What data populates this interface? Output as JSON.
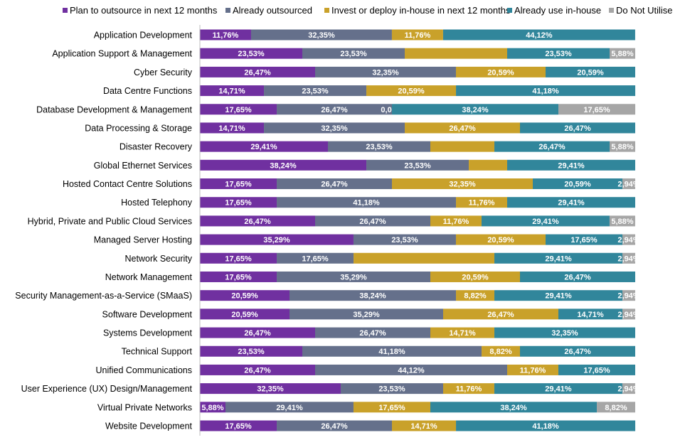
{
  "chart_data": {
    "type": "bar",
    "orientation": "horizontal",
    "stacked": "100%",
    "title": "",
    "xlabel": "",
    "ylabel": "",
    "xlim": [
      0,
      100
    ],
    "grid": false,
    "legend_position": "top",
    "value_format": "comma-decimal percent",
    "categories": [
      "Application Development",
      "Application Support & Management",
      "Cyber Security",
      "Data Centre Functions",
      "Database Development & Management",
      "Data Processing & Storage",
      "Disaster Recovery",
      "Global Ethernet Services",
      "Hosted Contact Centre Solutions",
      "Hosted Telephony",
      "Hybrid, Private and Public Cloud Services",
      "Managed Server Hosting",
      "Network Security",
      "Network Management",
      "Security Management-as-a-Service (SMaaS)",
      "Software Development",
      "Systems Development",
      "Technical Support",
      "Unified Communications",
      "User Experience (UX) Design/Management",
      "Virtual Private Networks",
      "Website Development"
    ],
    "series": [
      {
        "name": "Plan to outsource in next 12 months",
        "color": "#7030A0",
        "values": [
          11.76,
          23.53,
          26.47,
          14.71,
          17.65,
          14.71,
          29.41,
          38.24,
          17.65,
          17.65,
          26.47,
          35.29,
          17.65,
          17.65,
          20.59,
          20.59,
          26.47,
          23.53,
          26.47,
          32.35,
          5.88,
          17.65
        ],
        "labels": [
          "11,76%",
          "23,53%",
          "26,47%",
          "14,71%",
          "17,65%",
          "14,71%",
          "29,41%",
          "38,24%",
          "17,65%",
          "17,65%",
          "26,47%",
          "35,29%",
          "17,65%",
          "17,65%",
          "20,59%",
          "20,59%",
          "26,47%",
          "23,53%",
          "26,47%",
          "32,35%",
          "5,88%",
          "17,65%"
        ]
      },
      {
        "name": "Already outsourced",
        "color": "#65708B",
        "values": [
          32.35,
          23.53,
          32.35,
          23.53,
          26.47,
          32.35,
          23.53,
          23.53,
          26.47,
          41.18,
          26.47,
          23.53,
          17.65,
          35.29,
          38.24,
          35.29,
          26.47,
          41.18,
          44.12,
          23.53,
          29.41,
          26.47
        ],
        "labels": [
          "32,35%",
          "23,53%",
          "32,35%",
          "23,53%",
          "26,47%",
          "32,35%",
          "23,53%",
          "23,53%",
          "26,47%",
          "41,18%",
          "26,47%",
          "23,53%",
          "17,65%",
          "35,29%",
          "38,24%",
          "35,29%",
          "26,47%",
          "41,18%",
          "44,12%",
          "23,53%",
          "29,41%",
          "26,47%"
        ]
      },
      {
        "name": "Invest or deploy in-house in next 12 months",
        "color": "#C9A12A",
        "values": [
          11.76,
          23.53,
          20.59,
          20.59,
          0.0,
          26.47,
          14.71,
          8.82,
          32.35,
          11.76,
          11.76,
          20.59,
          32.35,
          20.59,
          8.82,
          26.47,
          14.71,
          8.82,
          11.76,
          11.76,
          17.65,
          14.71
        ],
        "labels": [
          "11,76%",
          "",
          "20,59%",
          "20,59%",
          "0,00%",
          "26,47%",
          "",
          "",
          "32,35%",
          "11,76%",
          "11,76%",
          "20,59%",
          "",
          "20,59%",
          "8,82%",
          "26,47%",
          "14,71%",
          "8,82%",
          "11,76%",
          "11,76%",
          "17,65%",
          "14,71%"
        ]
      },
      {
        "name": "Already use in-house",
        "color": "#31869B",
        "values": [
          44.12,
          23.53,
          20.59,
          41.18,
          38.24,
          26.47,
          26.47,
          29.41,
          20.59,
          29.41,
          29.41,
          17.65,
          29.41,
          26.47,
          29.41,
          14.71,
          32.35,
          26.47,
          17.65,
          29.41,
          38.24,
          41.18
        ],
        "labels": [
          "44,12%",
          "23,53%",
          "20,59%",
          "41,18%",
          "38,24%",
          "26,47%",
          "26,47%",
          "29,41%",
          "20,59%",
          "29,41%",
          "29,41%",
          "17,65%",
          "29,41%",
          "26,47%",
          "29,41%",
          "14,71%",
          "32,35%",
          "26,47%",
          "17,65%",
          "29,41%",
          "38,24%",
          "41,18%"
        ]
      },
      {
        "name": "Do Not Utilise",
        "color": "#A6A6A6",
        "values": [
          0,
          5.88,
          0,
          0,
          17.65,
          0,
          5.88,
          0,
          2.94,
          0,
          5.88,
          2.94,
          2.94,
          0,
          2.94,
          2.94,
          0,
          0,
          0,
          2.94,
          8.82,
          0
        ],
        "labels": [
          "",
          "5,88%",
          "",
          "",
          "17,65%",
          "",
          "5,88%",
          "",
          "2,94%",
          "",
          "5,88%",
          "2,94%",
          "2,94%",
          "",
          "2,94%",
          "2,94%",
          "",
          "",
          "",
          "2,94%",
          "8,82%",
          ""
        ]
      }
    ]
  }
}
